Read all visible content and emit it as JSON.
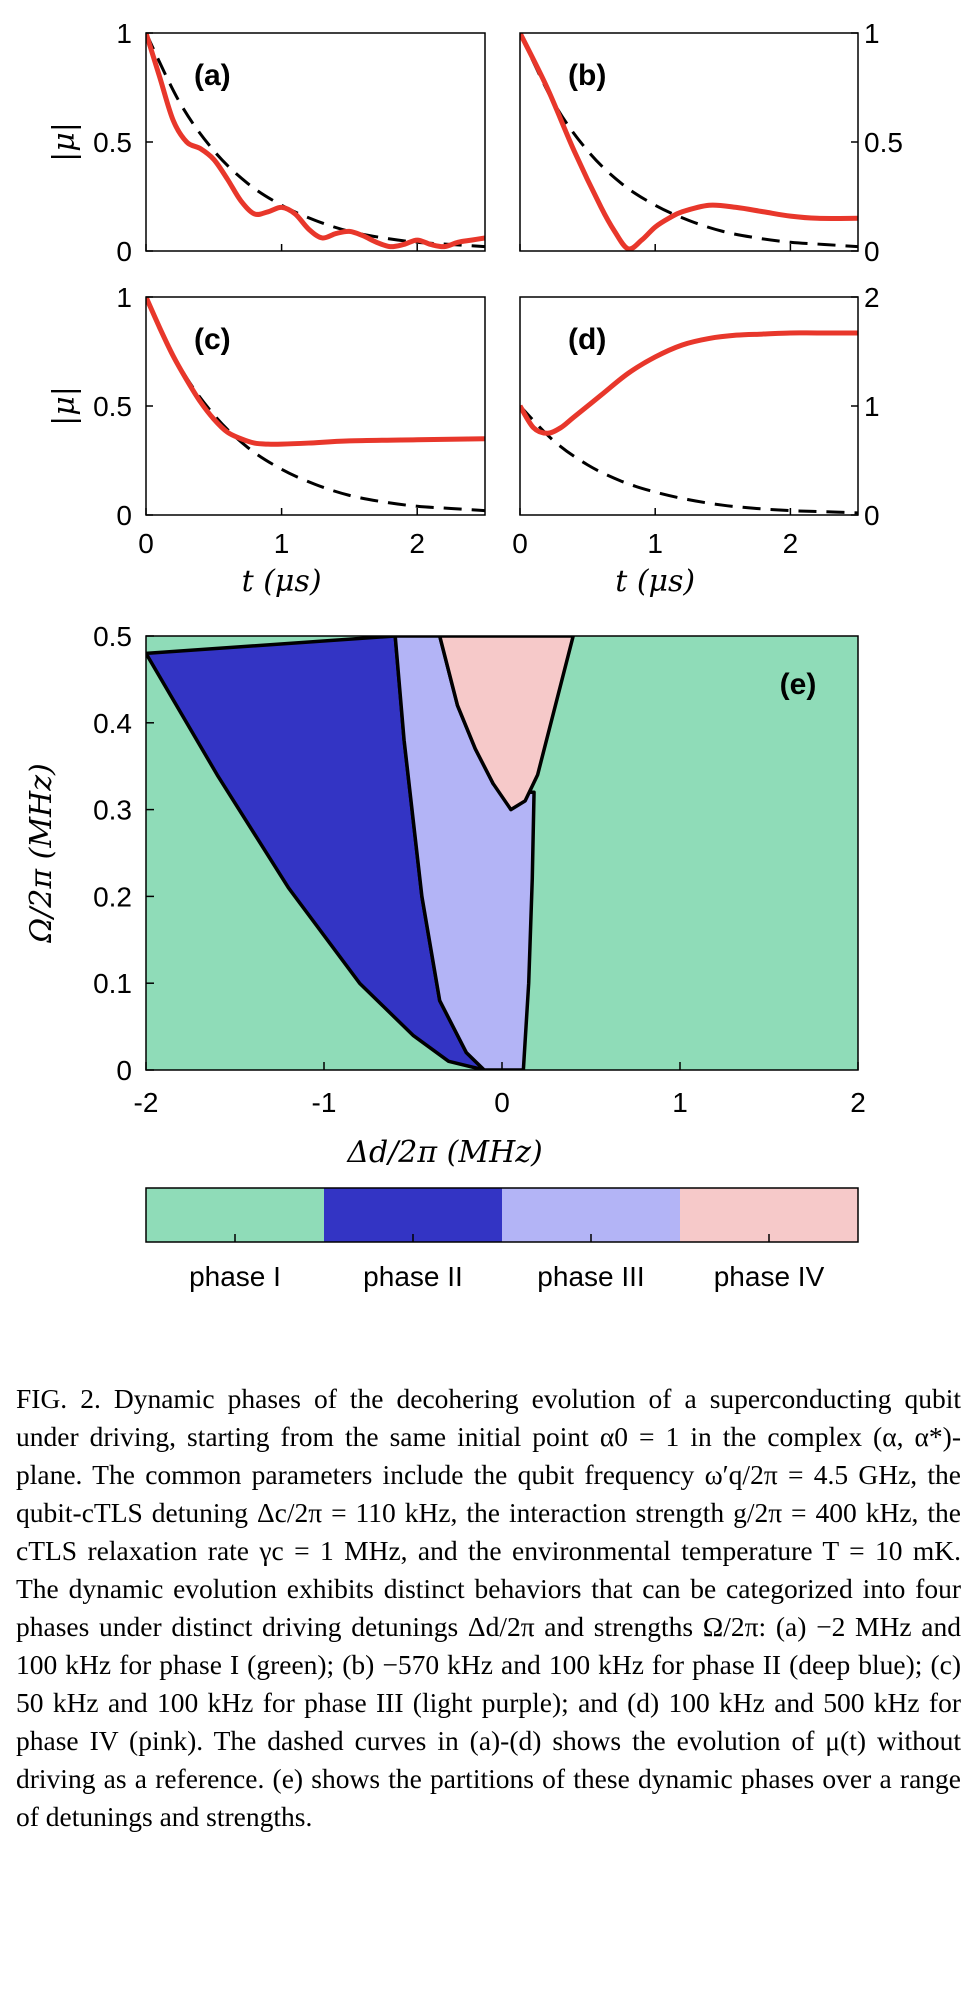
{
  "chart_data": [
    {
      "type": "line",
      "panel": "(a)",
      "xlim": [
        0,
        2.5
      ],
      "ylim": [
        0,
        1
      ],
      "yticks": [
        "0",
        "0.5",
        "1"
      ],
      "ylabel": "|μ|",
      "series": [
        {
          "style": "dashed",
          "color": "#000000",
          "x": [
            0,
            0.25,
            0.5,
            0.75,
            1.0,
            1.25,
            1.5,
            1.75,
            2.0,
            2.25,
            2.5
          ],
          "y": [
            1.0,
            0.68,
            0.46,
            0.31,
            0.21,
            0.14,
            0.09,
            0.06,
            0.04,
            0.03,
            0.02
          ]
        },
        {
          "style": "solid",
          "color": "#e8372b",
          "x": [
            0,
            0.1,
            0.2,
            0.3,
            0.4,
            0.5,
            0.6,
            0.7,
            0.8,
            0.9,
            1.0,
            1.1,
            1.2,
            1.3,
            1.4,
            1.5,
            1.6,
            1.7,
            1.8,
            1.9,
            2.0,
            2.1,
            2.2,
            2.3,
            2.4,
            2.5
          ],
          "y": [
            1.0,
            0.8,
            0.6,
            0.5,
            0.47,
            0.42,
            0.33,
            0.23,
            0.17,
            0.18,
            0.2,
            0.17,
            0.1,
            0.06,
            0.08,
            0.09,
            0.07,
            0.04,
            0.02,
            0.03,
            0.05,
            0.03,
            0.02,
            0.04,
            0.05,
            0.06
          ]
        }
      ]
    },
    {
      "type": "line",
      "panel": "(b)",
      "xlim": [
        0,
        2.5
      ],
      "ylim": [
        0,
        1
      ],
      "yticks": [
        "0",
        "0.5",
        "1"
      ],
      "series": [
        {
          "style": "dashed",
          "color": "#000000",
          "x": [
            0,
            0.25,
            0.5,
            0.75,
            1.0,
            1.25,
            1.5,
            1.75,
            2.0,
            2.25,
            2.5
          ],
          "y": [
            1.0,
            0.68,
            0.46,
            0.31,
            0.21,
            0.14,
            0.09,
            0.06,
            0.04,
            0.03,
            0.02
          ]
        },
        {
          "style": "solid",
          "color": "#e8372b",
          "x": [
            0,
            0.2,
            0.4,
            0.6,
            0.7,
            0.8,
            0.9,
            1.0,
            1.1,
            1.2,
            1.4,
            1.6,
            1.8,
            2.0,
            2.2,
            2.5
          ],
          "y": [
            1.0,
            0.75,
            0.46,
            0.2,
            0.09,
            0.01,
            0.05,
            0.11,
            0.15,
            0.18,
            0.21,
            0.2,
            0.18,
            0.16,
            0.15,
            0.15
          ]
        }
      ]
    },
    {
      "type": "line",
      "panel": "(c)",
      "xlim": [
        0,
        2.5
      ],
      "ylim": [
        0,
        1
      ],
      "xticks": [
        "0",
        "1",
        "2"
      ],
      "yticks": [
        "0",
        "0.5",
        "1"
      ],
      "xlabel": "t (μs)",
      "ylabel": "|μ|",
      "series": [
        {
          "style": "dashed",
          "color": "#000000",
          "x": [
            0,
            0.25,
            0.5,
            0.75,
            1.0,
            1.25,
            1.5,
            1.75,
            2.0,
            2.25,
            2.5
          ],
          "y": [
            1.0,
            0.68,
            0.46,
            0.31,
            0.21,
            0.14,
            0.09,
            0.06,
            0.04,
            0.03,
            0.02
          ]
        },
        {
          "style": "solid",
          "color": "#e8372b",
          "x": [
            0,
            0.1,
            0.2,
            0.3,
            0.4,
            0.5,
            0.6,
            0.7,
            0.8,
            0.9,
            1.0,
            1.2,
            1.5,
            2.0,
            2.5
          ],
          "y": [
            1.0,
            0.86,
            0.73,
            0.62,
            0.52,
            0.44,
            0.38,
            0.35,
            0.33,
            0.325,
            0.325,
            0.33,
            0.34,
            0.345,
            0.35
          ]
        }
      ]
    },
    {
      "type": "line",
      "panel": "(d)",
      "xlim": [
        0,
        2.5
      ],
      "ylim": [
        0,
        2
      ],
      "xticks": [
        "0",
        "1",
        "2"
      ],
      "yticks": [
        "0",
        "1",
        "2"
      ],
      "xlabel": "t (μs)",
      "series": [
        {
          "style": "dashed",
          "color": "#000000",
          "x": [
            0,
            0.25,
            0.5,
            0.75,
            1.0,
            1.25,
            1.5,
            1.75,
            2.0,
            2.25,
            2.5
          ],
          "y": [
            1.0,
            0.68,
            0.46,
            0.31,
            0.21,
            0.14,
            0.09,
            0.06,
            0.04,
            0.03,
            0.02
          ]
        },
        {
          "style": "solid",
          "color": "#e8372b",
          "x": [
            0,
            0.1,
            0.2,
            0.3,
            0.4,
            0.6,
            0.8,
            1.0,
            1.2,
            1.4,
            1.6,
            1.8,
            2.0,
            2.2,
            2.5
          ],
          "y": [
            1.0,
            0.8,
            0.75,
            0.8,
            0.9,
            1.1,
            1.3,
            1.45,
            1.56,
            1.62,
            1.65,
            1.66,
            1.67,
            1.67,
            1.67
          ]
        }
      ]
    },
    {
      "type": "heatmap",
      "panel": "(e)",
      "xlim": [
        -2,
        2
      ],
      "ylim": [
        0,
        0.5
      ],
      "xticks": [
        "-2",
        "-1",
        "0",
        "1",
        "2"
      ],
      "yticks": [
        "0",
        "0.1",
        "0.2",
        "0.3",
        "0.4",
        "0.5"
      ],
      "xlabel": "Δd/2π (MHz)",
      "ylabel": "Ω/2π (MHz)",
      "regions": [
        {
          "name": "phase I",
          "color": "#8fdcb8"
        },
        {
          "name": "phase II",
          "color": "#3334c4",
          "boundary": [
            [
              -2,
              0.48
            ],
            [
              -1.6,
              0.34
            ],
            [
              -1.2,
              0.21
            ],
            [
              -0.8,
              0.1
            ],
            [
              -0.5,
              0.04
            ],
            [
              -0.3,
              0.01
            ],
            [
              -0.1,
              0.0
            ],
            [
              -0.2,
              0.02
            ],
            [
              -0.35,
              0.08
            ],
            [
              -0.45,
              0.2
            ],
            [
              -0.55,
              0.38
            ],
            [
              -0.6,
              0.5
            ]
          ]
        },
        {
          "name": "phase III",
          "color": "#b3b4f6",
          "boundary": [
            [
              -0.6,
              0.5
            ],
            [
              -0.55,
              0.38
            ],
            [
              -0.45,
              0.2
            ],
            [
              -0.35,
              0.08
            ],
            [
              -0.2,
              0.02
            ],
            [
              -0.1,
              0.0
            ],
            [
              0.12,
              0.0
            ],
            [
              0.15,
              0.1
            ],
            [
              0.17,
              0.22
            ],
            [
              0.18,
              0.32
            ],
            [
              0.1,
              0.32
            ],
            [
              0.05,
              0.31
            ],
            [
              -0.05,
              0.33
            ],
            [
              -0.15,
              0.37
            ],
            [
              -0.25,
              0.42
            ],
            [
              -0.3,
              0.46
            ],
            [
              -0.35,
              0.5
            ]
          ]
        },
        {
          "name": "phase IV",
          "color": "#f6c9c9",
          "boundary": [
            [
              -0.35,
              0.5
            ],
            [
              -0.3,
              0.46
            ],
            [
              -0.25,
              0.42
            ],
            [
              -0.15,
              0.37
            ],
            [
              -0.05,
              0.33
            ],
            [
              0.05,
              0.3
            ],
            [
              0.13,
              0.31
            ],
            [
              0.2,
              0.34
            ],
            [
              0.3,
              0.42
            ],
            [
              0.4,
              0.5
            ]
          ]
        }
      ]
    }
  ],
  "panel_e_tag": "(e)",
  "legend": [
    "phase I",
    "phase II",
    "phase III",
    "phase IV"
  ],
  "legend_colors": [
    "#8fdcb8",
    "#3334c4",
    "#b3b4f6",
    "#f6c9c9"
  ],
  "caption": "FIG. 2.  Dynamic phases of the decohering evolution of a superconducting qubit under driving, starting from the same initial point α0 = 1 in the complex (α, α*)-plane. The common parameters include the qubit frequency ω′q/2π = 4.5 GHz, the qubit-cTLS detuning Δc/2π = 110 kHz, the interaction strength g/2π = 400 kHz, the cTLS relaxation rate γc = 1 MHz, and the environmental temperature T = 10 mK. The dynamic evolution exhibits distinct behaviors that can be categorized into four phases under distinct driving detunings Δd/2π and strengths Ω/2π: (a) −2 MHz and 100 kHz for phase I (green); (b) −570 kHz and 100 kHz for phase II (deep blue); (c) 50 kHz and 100 kHz for phase III (light purple); and (d) 100 kHz and 500 kHz for phase IV (pink). The dashed curves in (a)-(d) shows the evolution of μ(t) without driving as a reference. (e) shows the partitions of these dynamic phases over a range of detunings and strengths."
}
